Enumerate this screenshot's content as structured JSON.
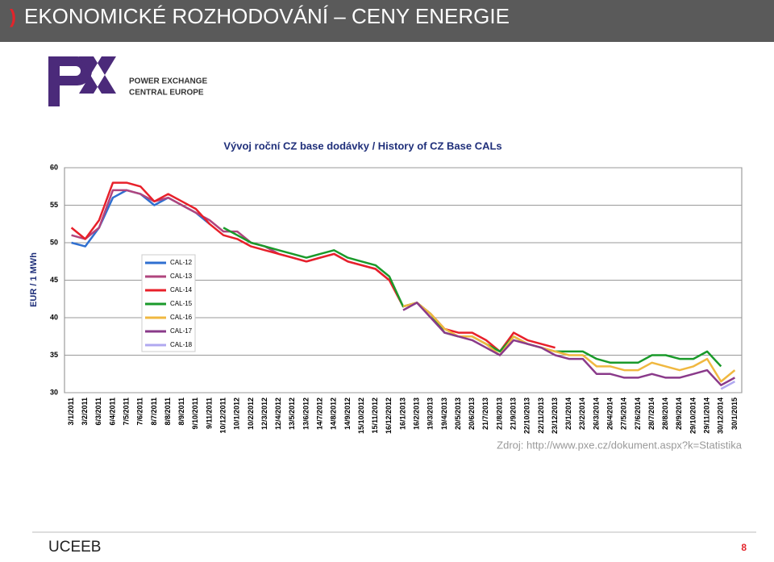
{
  "slide": {
    "title": "EKONOMICKÉ ROZHODOVÁNÍ – CENY ENERGIE",
    "logo_line1": "POWER EXCHANGE",
    "logo_line2": "CENTRAL EUROPE",
    "source": "Zdroj: http://www.pxe.cz/dokument.aspx?k=Statistika",
    "footer_brand": "UCEEB",
    "page_number": "8"
  },
  "chart_data": {
    "type": "line",
    "title": "Vývoj roční CZ base dodávky / History of CZ Base CALs",
    "y_label": "EUR / 1 MWh",
    "categories": [
      "3/1/2011",
      "3/2/2011",
      "6/3/2011",
      "6/4/2011",
      "7/5/2011",
      "7/6/2011",
      "8/7/2011",
      "8/8/2011",
      "8/9/2011",
      "9/10/2011",
      "9/11/2011",
      "10/12/2011",
      "10/1/2012",
      "10/2/2012",
      "12/3/2012",
      "12/4/2012",
      "13/5/2012",
      "13/6/2012",
      "14/7/2012",
      "14/8/2012",
      "14/9/2012",
      "15/10/2012",
      "15/11/2012",
      "16/12/2012",
      "16/1/2013",
      "16/2/2013",
      "19/3/2013",
      "19/4/2013",
      "20/5/2013",
      "20/6/2013",
      "21/7/2013",
      "21/8/2013",
      "21/9/2013",
      "22/10/2013",
      "22/11/2013",
      "23/12/2013",
      "23/1/2014",
      "23/2/2014",
      "26/3/2014",
      "26/4/2014",
      "27/5/2014",
      "27/6/2014",
      "28/7/2014",
      "28/8/2014",
      "28/9/2014",
      "29/10/2014",
      "29/11/2014",
      "30/12/2014",
      "30/1/2015"
    ],
    "ylim": [
      30,
      60
    ],
    "yticks": [
      30,
      35,
      40,
      45,
      50,
      55,
      60
    ],
    "grid": true,
    "series": [
      {
        "name": "CAL-12",
        "color": "#2f6fd0",
        "values": [
          50,
          49.5,
          52,
          56,
          57,
          56.5,
          55,
          56,
          55,
          54,
          52.5,
          null,
          null,
          null,
          null,
          null,
          null,
          null,
          null,
          null,
          null,
          null,
          null,
          null,
          null,
          null,
          null,
          null,
          null,
          null,
          null,
          null,
          null,
          null,
          null,
          null,
          null,
          null,
          null,
          null,
          null,
          null,
          null,
          null,
          null,
          null,
          null,
          null,
          null
        ]
      },
      {
        "name": "CAL-13",
        "color": "#b0457e",
        "values": [
          51,
          50.5,
          52,
          57,
          57,
          56.5,
          55.5,
          56,
          55,
          54,
          53,
          51.5,
          51.5,
          50,
          49.5,
          48.5,
          48,
          47.5,
          48,
          48.5,
          47.5,
          47,
          46.5,
          45,
          null,
          null,
          null,
          null,
          null,
          null,
          null,
          null,
          null,
          null,
          null,
          null,
          null,
          null,
          null,
          null,
          null,
          null,
          null,
          null,
          null,
          null,
          null,
          null,
          null
        ]
      },
      {
        "name": "CAL-14",
        "color": "#e8202a",
        "values": [
          52,
          50.5,
          53,
          58,
          58,
          57.5,
          55.5,
          56.5,
          55.5,
          54.5,
          52.5,
          51,
          50.5,
          49.5,
          49,
          48.5,
          48,
          47.5,
          48,
          48.5,
          47.5,
          47,
          46.5,
          45,
          41.5,
          42,
          40.5,
          38.5,
          38,
          38,
          37,
          35.5,
          38,
          37,
          36.5,
          36,
          null,
          null,
          null,
          null,
          null,
          null,
          null,
          null,
          null,
          null,
          null,
          null,
          null
        ]
      },
      {
        "name": "CAL-15",
        "color": "#1a9a2a",
        "values": [
          null,
          null,
          null,
          null,
          null,
          null,
          null,
          null,
          null,
          null,
          null,
          52,
          51,
          50,
          49.5,
          49,
          48.5,
          48,
          48.5,
          49,
          48,
          47.5,
          47,
          45.5,
          41.5,
          42,
          40.5,
          38,
          37.5,
          37.5,
          36.5,
          35.5,
          37.5,
          36.5,
          36,
          35.5,
          35.5,
          35.5,
          34.5,
          34,
          34,
          34,
          35,
          35,
          34.5,
          34.5,
          35.5,
          33.5,
          null
        ]
      },
      {
        "name": "CAL-16",
        "color": "#f0b840",
        "values": [
          null,
          null,
          null,
          null,
          null,
          null,
          null,
          null,
          null,
          null,
          null,
          null,
          null,
          null,
          null,
          null,
          null,
          null,
          null,
          null,
          null,
          null,
          null,
          null,
          41.5,
          42,
          40.5,
          38.5,
          37.5,
          37.5,
          36.5,
          35,
          37.5,
          36.5,
          36,
          35.5,
          35,
          35,
          33.5,
          33.5,
          33,
          33,
          34,
          33.5,
          33,
          33.5,
          34.5,
          31.5,
          33
        ]
      },
      {
        "name": "CAL-17",
        "color": "#8a3a8a",
        "values": [
          null,
          null,
          null,
          null,
          null,
          null,
          null,
          null,
          null,
          null,
          null,
          null,
          null,
          null,
          null,
          null,
          null,
          null,
          null,
          null,
          null,
          null,
          null,
          null,
          41,
          42,
          40,
          38,
          37.5,
          37,
          36,
          35,
          37,
          36.5,
          36,
          35,
          34.5,
          34.5,
          32.5,
          32.5,
          32,
          32,
          32.5,
          32,
          32,
          32.5,
          33,
          31,
          32
        ]
      },
      {
        "name": "CAL-18",
        "color": "#b0a8f0",
        "values": [
          null,
          null,
          null,
          null,
          null,
          null,
          null,
          null,
          null,
          null,
          null,
          null,
          null,
          null,
          null,
          null,
          null,
          null,
          null,
          null,
          null,
          null,
          null,
          null,
          null,
          null,
          null,
          null,
          null,
          null,
          null,
          null,
          null,
          null,
          null,
          null,
          null,
          null,
          null,
          null,
          null,
          null,
          null,
          null,
          null,
          null,
          null,
          30.5,
          31.5
        ]
      }
    ]
  }
}
